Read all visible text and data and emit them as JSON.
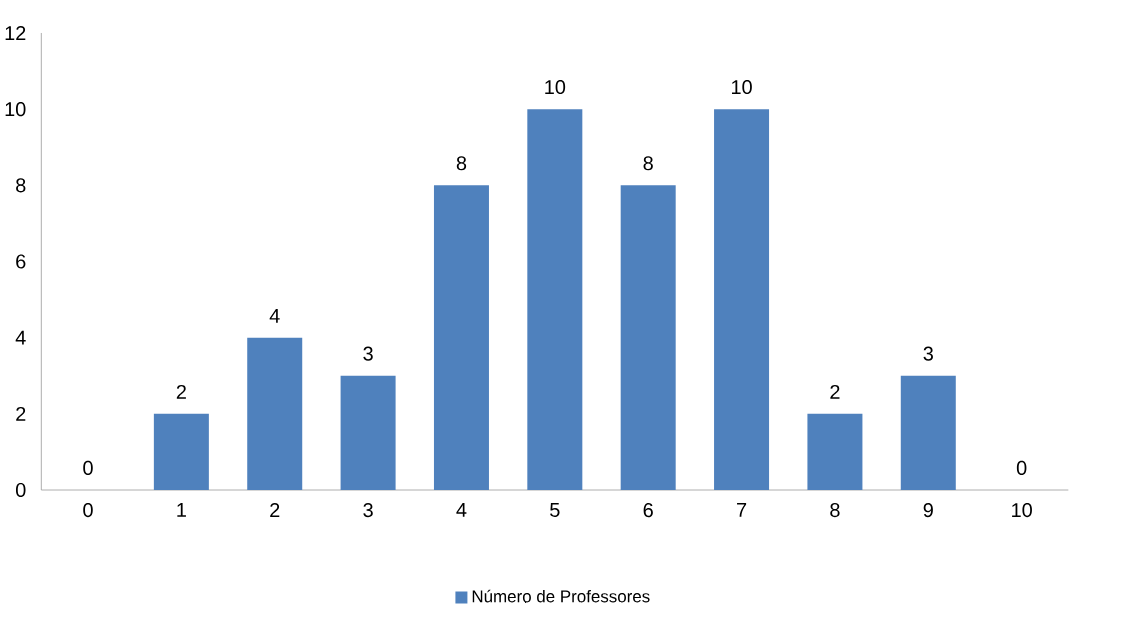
{
  "chart_data": {
    "type": "bar",
    "categories": [
      "0",
      "1",
      "2",
      "3",
      "4",
      "5",
      "6",
      "7",
      "8",
      "9",
      "10"
    ],
    "series": [
      {
        "name": "Número de Professores",
        "color": "#4f81bd",
        "values": [
          0,
          2,
          4,
          3,
          8,
          10,
          8,
          10,
          2,
          3,
          0
        ]
      }
    ],
    "ylim": [
      0,
      12
    ],
    "yticks": [
      0,
      2,
      4,
      6,
      8,
      10,
      12
    ],
    "data_labels": true,
    "legend": "bottom",
    "grid": false
  }
}
